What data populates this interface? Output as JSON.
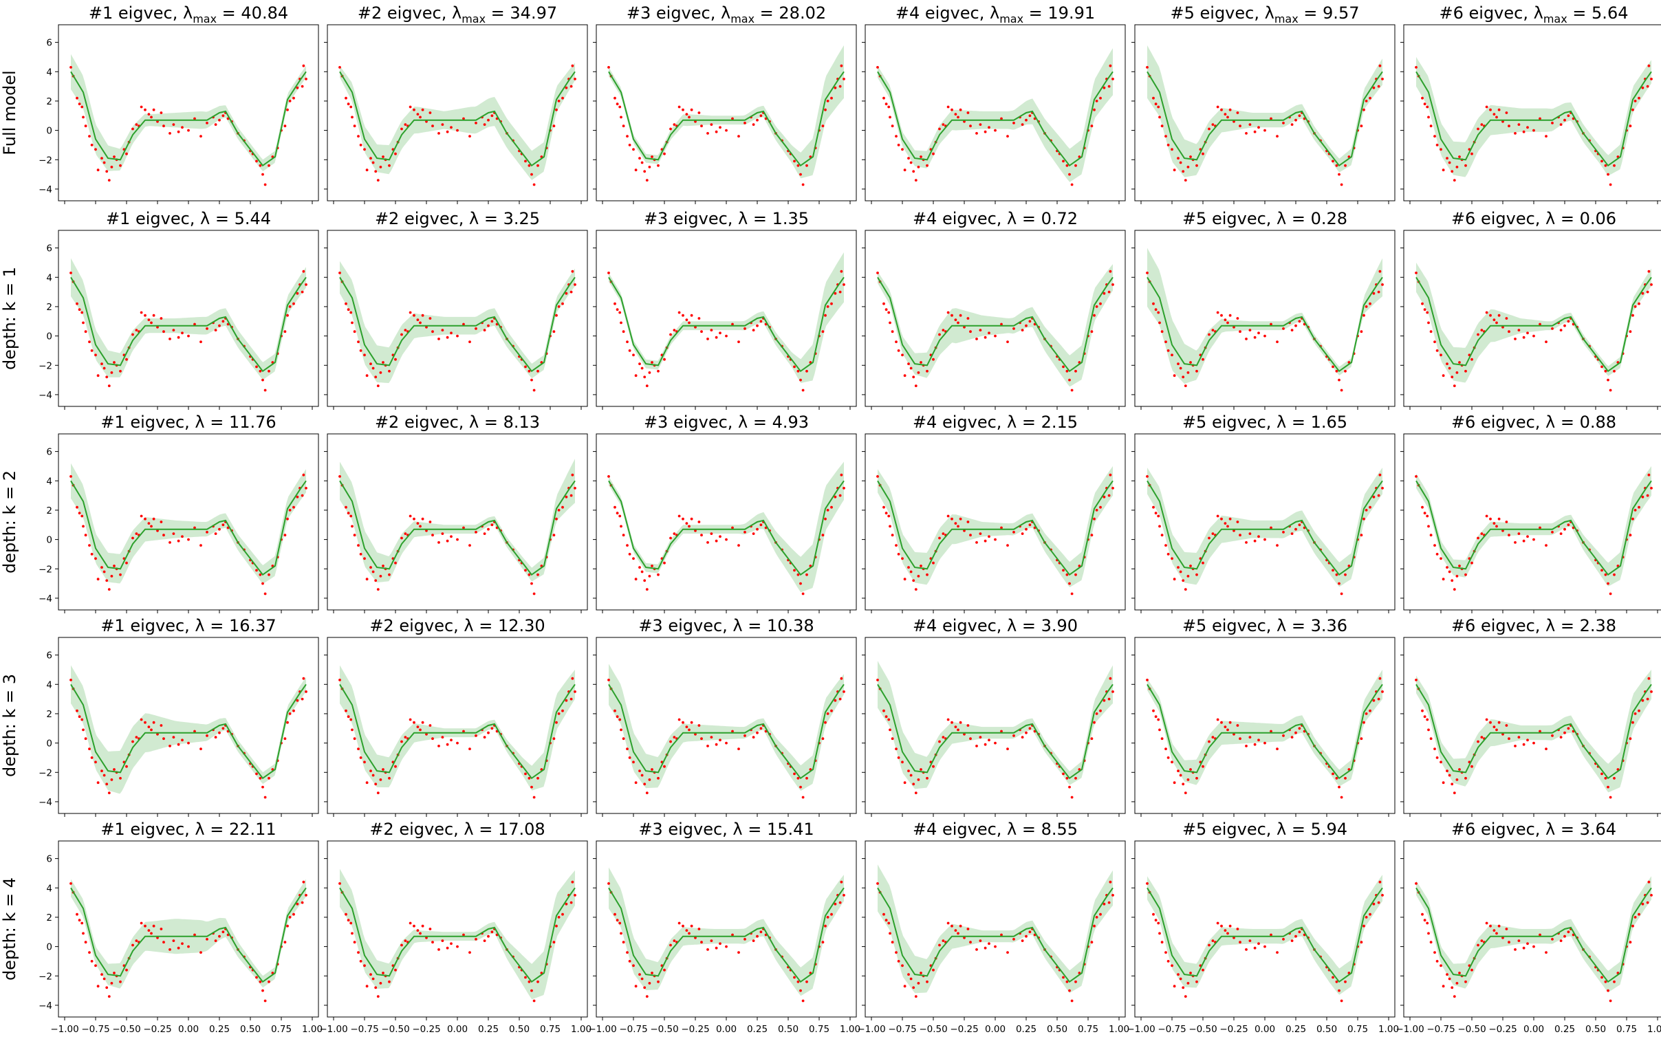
{
  "figure": {
    "row_labels": [
      "Full model",
      "depth: k = 1",
      "depth: k = 2",
      "depth: k = 3",
      "depth: k = 4"
    ],
    "titles": [
      [
        "#1 eigvec, λmax = 40.84",
        "#2 eigvec, λmax = 34.97",
        "#3 eigvec, λmax = 28.02",
        "#4 eigvec, λmax = 19.91",
        "#5 eigvec, λmax =  9.57",
        "#6 eigvec, λmax =  5.64"
      ],
      [
        "#1 eigvec, λ =  5.44",
        "#2 eigvec, λ =  3.25",
        "#3 eigvec, λ =  1.35",
        "#4 eigvec, λ =  0.72",
        "#5 eigvec, λ =  0.28",
        "#6 eigvec, λ =  0.06"
      ],
      [
        "#1 eigvec, λ = 11.76",
        "#2 eigvec, λ =  8.13",
        "#3 eigvec, λ =  4.93",
        "#4 eigvec, λ =  2.15",
        "#5 eigvec, λ =  1.65",
        "#6 eigvec, λ =  0.88"
      ],
      [
        "#1 eigvec, λ = 16.37",
        "#2 eigvec, λ = 12.30",
        "#3 eigvec, λ = 10.38",
        "#4 eigvec, λ =  3.90",
        "#5 eigvec, λ =  3.36",
        "#6 eigvec, λ =  2.38"
      ],
      [
        "#1 eigvec, λ = 22.11",
        "#2 eigvec, λ = 17.08",
        "#3 eigvec, λ = 15.41",
        "#4 eigvec, λ =  8.55",
        "#5 eigvec, λ =  5.94",
        "#6 eigvec, λ =  3.64"
      ]
    ],
    "colors": {
      "mean_line": "#2ca02c",
      "band_fill": "#2ca02c",
      "points": "#ff0000",
      "axes": "#000000"
    }
  },
  "chart_data": {
    "type": "line",
    "layout": "5x6 grid of panels",
    "xlim": [
      -1.05,
      1.05
    ],
    "ylim": [
      -4.8,
      7.2
    ],
    "xticks": [
      -1.0,
      -0.75,
      -0.5,
      -0.25,
      0.0,
      0.25,
      0.5,
      0.75,
      1.0
    ],
    "xtick_labels": [
      "−1.00",
      "−0.75",
      "−0.50",
      "−0.25",
      "0.00",
      "0.25",
      "0.50",
      "0.75",
      "1.00"
    ],
    "yticks": [
      -4,
      -2,
      0,
      2,
      4,
      6
    ],
    "ytick_labels": [
      "−4",
      "−2",
      "0",
      "2",
      "4",
      "6"
    ],
    "x_labels_bottom_row_only": true,
    "y_labels_left_column_only": true,
    "mean_curve": {
      "x": [
        -0.95,
        -0.85,
        -0.75,
        -0.65,
        -0.55,
        -0.45,
        -0.35,
        -0.25,
        -0.15,
        -0.05,
        0.05,
        0.15,
        0.25,
        0.3,
        0.4,
        0.5,
        0.6,
        0.7,
        0.8,
        0.9,
        0.95
      ],
      "y": [
        4.0,
        2.6,
        -0.6,
        -1.9,
        -2.0,
        -0.3,
        0.7,
        0.7,
        0.7,
        0.7,
        0.7,
        0.7,
        1.2,
        1.3,
        -0.2,
        -1.3,
        -2.4,
        -1.8,
        2.1,
        3.4,
        4.0
      ]
    },
    "observations": {
      "x": [
        -0.95,
        -0.93,
        -0.9,
        -0.88,
        -0.86,
        -0.85,
        -0.83,
        -0.8,
        -0.78,
        -0.75,
        -0.73,
        -0.7,
        -0.68,
        -0.66,
        -0.64,
        -0.62,
        -0.6,
        -0.58,
        -0.55,
        -0.52,
        -0.5,
        -0.48,
        -0.45,
        -0.42,
        -0.4,
        -0.38,
        -0.35,
        -0.32,
        -0.3,
        -0.28,
        -0.25,
        -0.22,
        -0.2,
        -0.15,
        -0.12,
        -0.08,
        -0.05,
        0.0,
        0.05,
        0.1,
        0.15,
        0.2,
        0.22,
        0.25,
        0.28,
        0.3,
        0.32,
        0.35,
        0.4,
        0.45,
        0.5,
        0.52,
        0.55,
        0.58,
        0.6,
        0.62,
        0.65,
        0.68,
        0.72,
        0.75,
        0.78,
        0.8,
        0.82,
        0.85,
        0.88,
        0.9,
        0.92,
        0.93,
        0.95
      ],
      "y": [
        4.3,
        3.7,
        2.2,
        1.8,
        1.6,
        0.9,
        0.3,
        -0.4,
        -1.0,
        -1.3,
        -2.7,
        -1.9,
        -2.2,
        -2.8,
        -3.4,
        -2.5,
        -1.8,
        -2.0,
        -2.4,
        -1.3,
        -1.6,
        -0.8,
        0.1,
        0.4,
        0.3,
        1.6,
        1.4,
        1.1,
        0.9,
        1.4,
        0.6,
        1.2,
        0.3,
        -0.2,
        0.4,
        -0.1,
        0.2,
        0.0,
        0.8,
        -0.4,
        0.5,
        0.9,
        0.4,
        0.7,
        1.0,
        1.2,
        0.8,
        0.6,
        -0.2,
        -0.7,
        -1.4,
        -1.6,
        -2.1,
        -2.4,
        -3.0,
        -3.7,
        -2.4,
        -1.8,
        -1.2,
        0.0,
        0.3,
        1.4,
        2.0,
        2.2,
        2.9,
        3.5,
        3.0,
        4.4,
        3.5
      ]
    },
    "band_width_by_panel": [
      [
        [
          1.2,
          1.0,
          0.7,
          0.4,
          0.5,
          0.6,
          0.4,
          0.4,
          0.4,
          0.4
        ],
        [
          0.4,
          0.9,
          1.0,
          0.9,
          0.6,
          0.9,
          1.0,
          1.0,
          1.0,
          0.6
        ],
        [
          0.3,
          0.3,
          0.3,
          0.4,
          0.3,
          0.3,
          0.4,
          0.6,
          1.4,
          1.8
        ],
        [
          0.4,
          0.5,
          0.6,
          0.7,
          0.6,
          0.6,
          0.9,
          1.1,
          1.2,
          1.6
        ],
        [
          1.8,
          1.5,
          1.0,
          0.8,
          0.5,
          0.5,
          0.5,
          0.4,
          0.6,
          0.9
        ],
        [
          1.0,
          1.1,
          1.2,
          1.0,
          0.8,
          0.8,
          0.6,
          0.6,
          0.9,
          0.8
        ]
      ],
      [
        [
          1.3,
          1.0,
          0.8,
          0.5,
          0.5,
          0.6,
          0.6,
          0.6,
          0.6,
          0.7
        ],
        [
          1.1,
          1.3,
          1.2,
          0.8,
          0.6,
          0.6,
          0.6,
          0.5,
          0.5,
          0.6
        ],
        [
          0.3,
          0.3,
          0.3,
          0.3,
          0.3,
          0.3,
          0.4,
          0.5,
          1.4,
          1.7
        ],
        [
          0.4,
          0.6,
          0.9,
          1.2,
          0.7,
          0.5,
          0.7,
          1.0,
          1.2,
          0.9
        ],
        [
          2.0,
          1.7,
          0.9,
          0.4,
          0.3,
          0.3,
          0.3,
          0.3,
          0.3,
          1.3
        ],
        [
          1.0,
          1.1,
          1.2,
          1.1,
          0.5,
          0.3,
          0.3,
          0.3,
          0.4,
          0.6
        ]
      ],
      [
        [
          1.2,
          1.0,
          1.0,
          0.8,
          0.6,
          0.5,
          0.5,
          0.6,
          0.7,
          0.8
        ],
        [
          1.3,
          1.2,
          0.8,
          0.5,
          0.3,
          0.3,
          0.3,
          0.4,
          0.6,
          1.5
        ],
        [
          0.3,
          0.3,
          0.3,
          0.3,
          0.3,
          0.3,
          0.6,
          1.0,
          1.6,
          1.3
        ],
        [
          0.8,
          1.0,
          1.1,
          1.0,
          0.5,
          0.4,
          0.5,
          0.8,
          1.0,
          1.0
        ],
        [
          0.9,
          1.0,
          1.1,
          0.9,
          0.6,
          0.6,
          0.7,
          0.8,
          0.9,
          0.9
        ],
        [
          0.5,
          0.5,
          0.6,
          0.5,
          0.4,
          0.4,
          0.4,
          0.7,
          1.0,
          1.0
        ]
      ],
      [
        [
          1.3,
          1.2,
          1.5,
          1.3,
          0.8,
          0.6,
          0.4,
          0.4,
          0.4,
          0.5
        ],
        [
          1.3,
          1.2,
          1.0,
          0.6,
          0.3,
          0.3,
          0.3,
          0.6,
          1.3,
          1.0
        ],
        [
          1.4,
          1.3,
          1.0,
          0.6,
          0.5,
          0.4,
          0.4,
          0.8,
          1.0,
          0.7
        ],
        [
          1.6,
          1.4,
          1.0,
          0.7,
          0.4,
          0.4,
          0.4,
          0.4,
          0.6,
          1.3
        ],
        [
          0.4,
          0.6,
          0.9,
          0.8,
          0.7,
          0.6,
          0.6,
          0.5,
          0.7,
          1.0
        ],
        [
          0.6,
          0.7,
          1.0,
          0.9,
          0.5,
          0.5,
          0.6,
          0.8,
          1.3,
          1.0
        ]
      ],
      [
        [
          0.6,
          0.6,
          0.9,
          1.0,
          1.2,
          1.1,
          0.6,
          0.4,
          0.4,
          0.6
        ],
        [
          1.3,
          1.1,
          0.8,
          0.4,
          0.3,
          0.3,
          0.4,
          1.0,
          1.6,
          1.2
        ],
        [
          1.4,
          1.2,
          0.9,
          0.6,
          0.5,
          0.5,
          0.6,
          0.9,
          1.1,
          0.9
        ],
        [
          1.6,
          1.4,
          1.1,
          0.8,
          0.4,
          0.4,
          0.5,
          0.7,
          0.9,
          1.2
        ],
        [
          0.8,
          0.9,
          0.8,
          0.6,
          0.5,
          0.5,
          0.6,
          0.9,
          0.9,
          0.9
        ],
        [
          0.5,
          0.6,
          0.9,
          0.8,
          0.5,
          0.5,
          0.6,
          0.7,
          0.8,
          0.8
        ]
      ]
    ]
  }
}
